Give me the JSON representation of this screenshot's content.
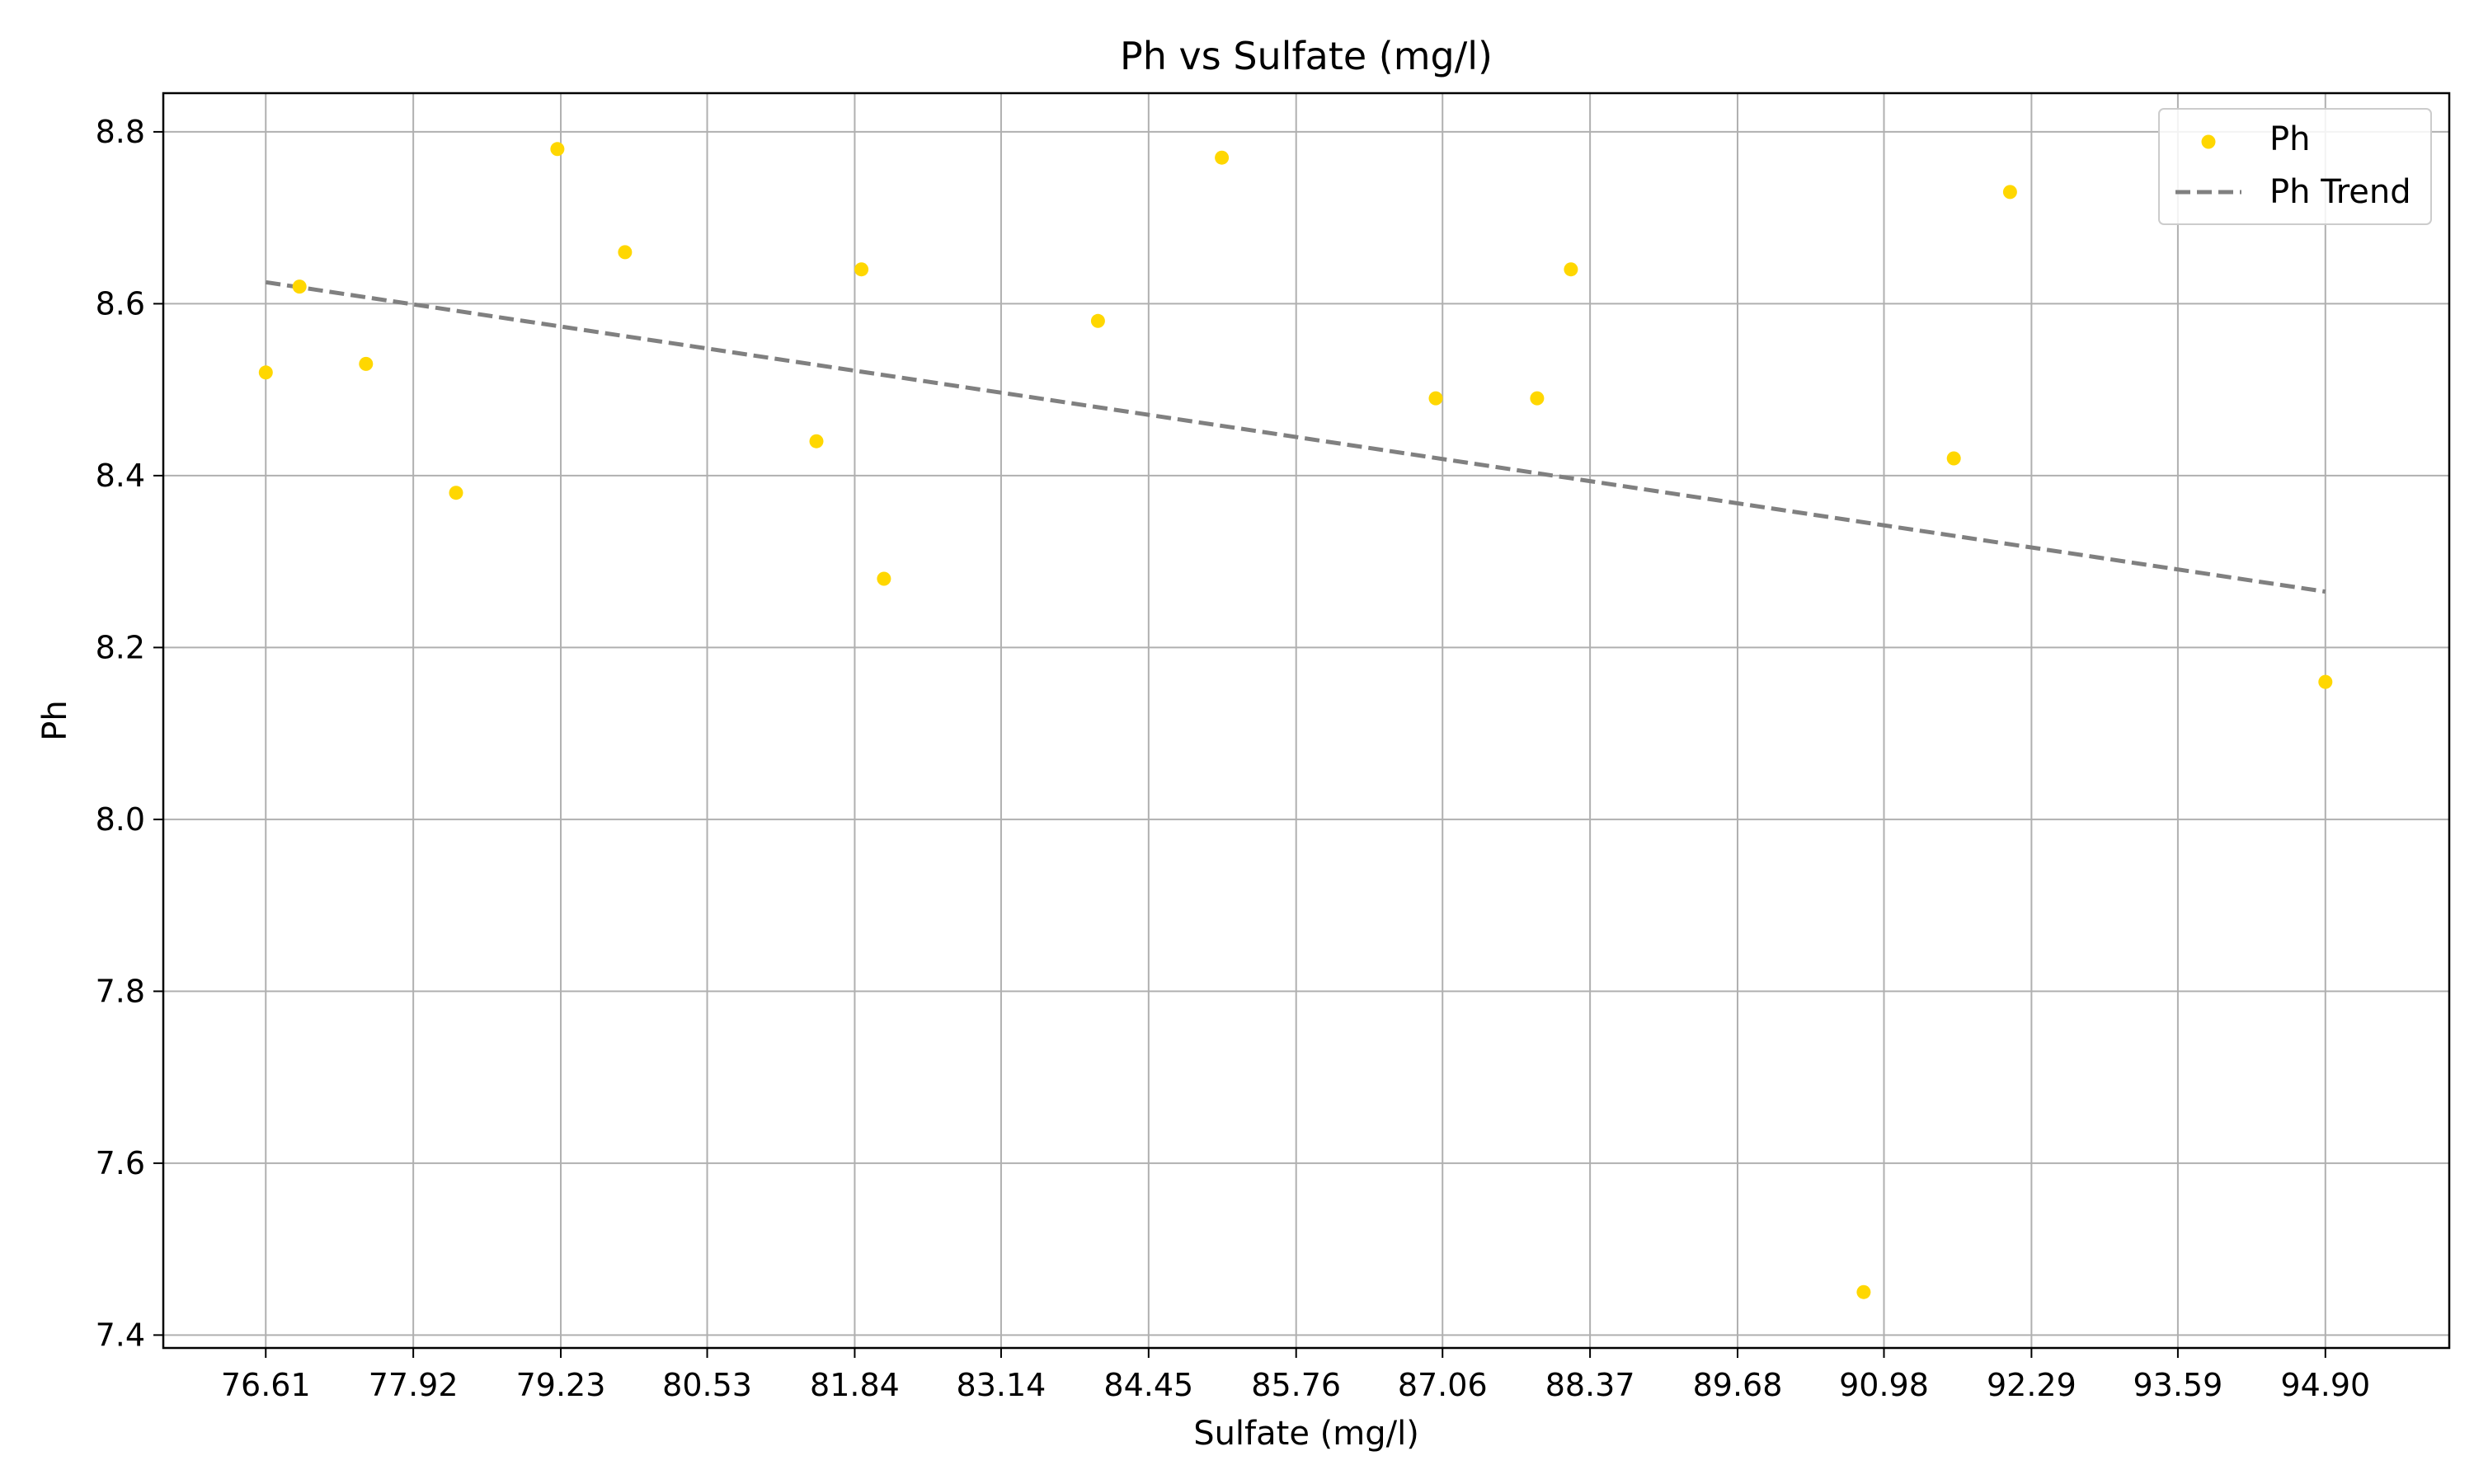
{
  "chart_data": {
    "type": "scatter",
    "title": "Ph vs Sulfate (mg/l)",
    "xlabel": "Sulfate (mg/l)",
    "ylabel": "Ph",
    "xlim": [
      75.7,
      96.0
    ],
    "ylim": [
      7.385,
      8.845
    ],
    "x_ticks": [
      "76.61",
      "77.92",
      "79.23",
      "80.53",
      "81.84",
      "83.14",
      "84.45",
      "85.76",
      "87.06",
      "88.37",
      "89.68",
      "90.98",
      "92.29",
      "93.59",
      "94.90"
    ],
    "y_ticks": [
      "7.4",
      "7.6",
      "7.8",
      "8.0",
      "8.2",
      "8.4",
      "8.6",
      "8.8"
    ],
    "grid": true,
    "legend_position": "top-right",
    "series": [
      {
        "name": "Ph",
        "kind": "scatter",
        "color": "#FFD700",
        "x": [
          76.61,
          76.91,
          77.5,
          78.3,
          79.2,
          79.8,
          81.5,
          81.9,
          82.1,
          84.0,
          85.1,
          87.0,
          87.9,
          88.2,
          90.8,
          91.6,
          92.1,
          94.9
        ],
        "y": [
          8.52,
          8.62,
          8.53,
          8.38,
          8.78,
          8.66,
          8.44,
          8.64,
          8.28,
          8.58,
          8.77,
          8.49,
          8.49,
          8.64,
          7.45,
          8.42,
          8.73,
          8.16
        ]
      },
      {
        "name": "Ph Trend",
        "kind": "line",
        "style": "dashed",
        "color": "#808080",
        "x": [
          76.61,
          94.9
        ],
        "y": [
          8.625,
          8.265
        ]
      }
    ]
  }
}
